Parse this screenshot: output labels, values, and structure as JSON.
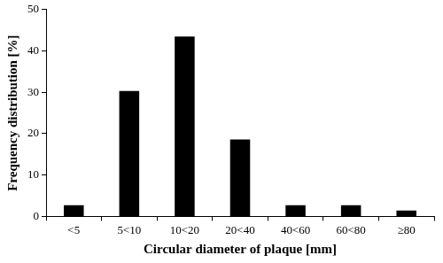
{
  "chart_data": {
    "type": "bar",
    "x_label": "Circular diameter of plaque [mm]",
    "y_label": "Frequency distribution [%]",
    "categories": [
      "<5",
      "5<10",
      "10<20",
      "20<40",
      "40<60",
      "60<80",
      "≥80"
    ],
    "values": [
      2.7,
      30.3,
      43.5,
      18.6,
      2.7,
      2.7,
      1.4
    ],
    "color": "#000000",
    "ylim": [
      0,
      50
    ],
    "yticks": [
      0,
      10,
      20,
      30,
      40,
      50
    ],
    "grid": false
  }
}
